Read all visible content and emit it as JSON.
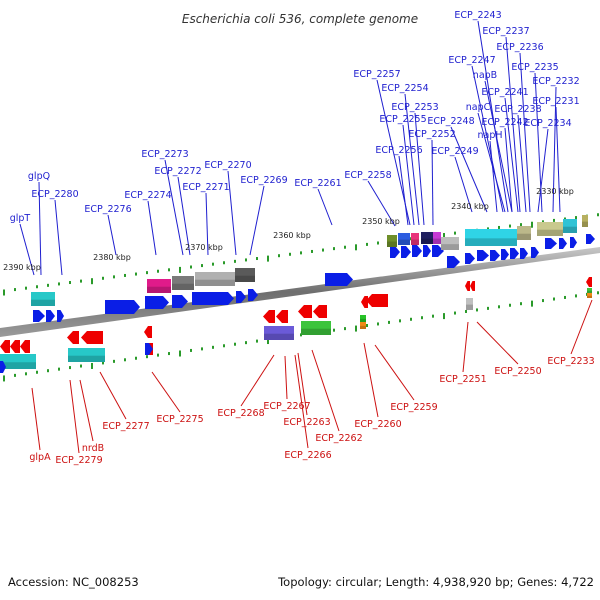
{
  "title": "Escherichia coli 536, complete genome",
  "footer": {
    "accession": "Accession: NC_008253",
    "topology": "Topology: circular; Length: 4,938,920 bp; Genes: 4,722"
  },
  "colors": {
    "forward_label": "#1f1fcf",
    "reverse_label": "#cc1111",
    "forward_gene": "#0a1ee6",
    "reverse_gene": "#ee0000",
    "backbone": "#7a7a7a",
    "tick": "#2a9a2a"
  },
  "kbp_labels": [
    "2330 kbp",
    "2340 kbp",
    "2350 kbp",
    "2360 kbp",
    "2370 kbp",
    "2380 kbp",
    "2390 kbp"
  ],
  "forward_labels": [
    "ECP_2243",
    "ECP_2237",
    "ECP_2236",
    "ECP_2247",
    "ECP_2235",
    "ECP_2257",
    "napB",
    "ECP_2232",
    "ECP_2254",
    "ECP_2241",
    "ECP_2253",
    "napC",
    "ECP_2238",
    "ECP_2231",
    "ECP_2255",
    "ECP_2248",
    "ECP_2242",
    "ECP_2234",
    "ECP_2252",
    "napH",
    "ECP_2273",
    "ECP_2256",
    "ECP_2249",
    "ECP_2270",
    "ECP_2272",
    "ECP_2258",
    "glpQ",
    "ECP_2269",
    "ECP_2261",
    "ECP_2271",
    "ECP_2280",
    "ECP_2274",
    "ECP_2276",
    "glpT"
  ],
  "reverse_labels": [
    "ECP_2233",
    "ECP_2250",
    "ECP_2251",
    "ECP_2259",
    "ECP_2277",
    "ECP_2275",
    "ECP_2268",
    "ECP_2267",
    "ECP_2260",
    "ECP_2263",
    "ECP_2262",
    "nrdB",
    "ECP_2266",
    "glpA",
    "ECP_2279"
  ]
}
